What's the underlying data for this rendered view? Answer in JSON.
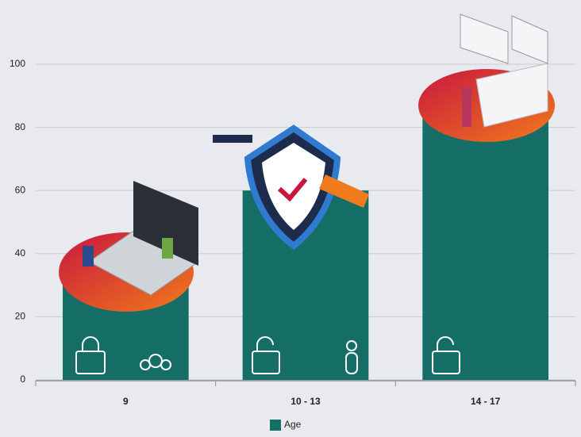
{
  "chart_data": {
    "type": "bar",
    "categories": [
      "9",
      "10 - 13",
      "14 - 17"
    ],
    "series": [
      {
        "name": "Age",
        "color": "#146e66",
        "values": [
          30,
          60,
          85
        ]
      }
    ],
    "ylim": [
      0,
      100
    ],
    "yticks": [
      0,
      20,
      40,
      60,
      80,
      100
    ],
    "grid": true,
    "legend": "bottom"
  }
}
